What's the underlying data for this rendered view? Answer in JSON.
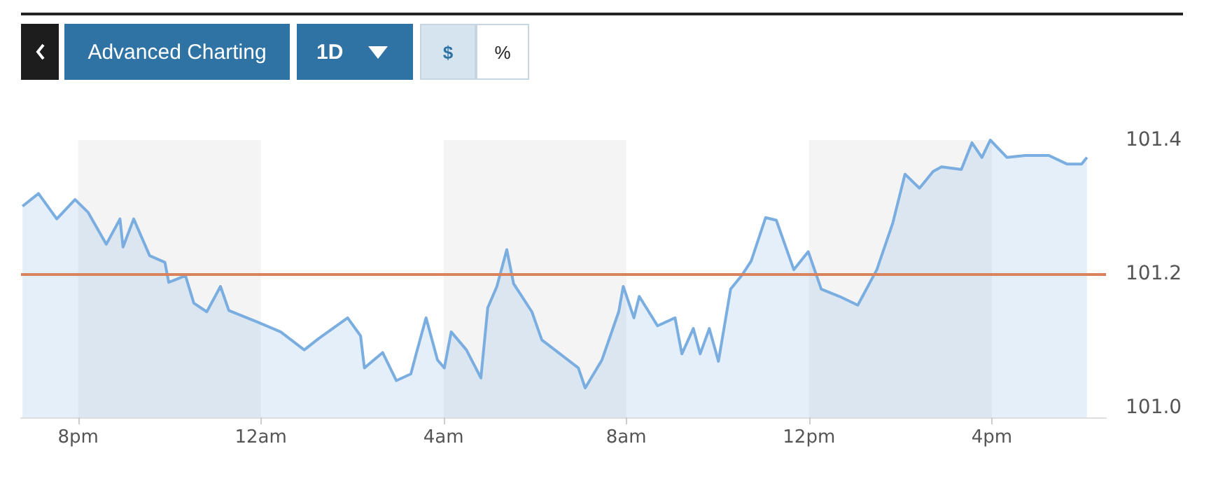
{
  "chart_data": {
    "type": "area",
    "color": "#7aade0",
    "annotations": [
      "Advanced Charting",
      "1D",
      "$",
      "%"
    ],
    "x": [
      "--01-01T18:47",
      "--01-01T19:08",
      "--01-01T19:32",
      "--01-01T19:56",
      "--01-01T20:13",
      "--01-01T20:37",
      "--01-01T20:55",
      "--01-01T20:59",
      "--01-01T21:13",
      "--01-01T21:34",
      "--01-01T21:54",
      "--01-01T21:59",
      "--01-01T22:21",
      "--01-01T22:32",
      "--01-01T22:49",
      "--01-01T23:07",
      "--01-01T23:18",
      "--01-01T23:55",
      "--01-02T00:26",
      "--01-02T00:57",
      "--01-02T01:16",
      "--01-02T01:54",
      "--01-02T02:11",
      "--01-02T02:16",
      "--01-02T02:40",
      "--01-02T02:58",
      "--01-02T03:17",
      "--01-02T03:24",
      "--01-02T03:37",
      "--01-02T03:52",
      "--01-02T04:01",
      "--01-02T04:10",
      "--01-02T04:30",
      "--01-02T04:49",
      "--01-02T04:58",
      "--01-02T05:10",
      "--01-02T05:23",
      "--01-02T05:32",
      "--01-02T05:56",
      "--01-02T06:09",
      "--01-02T06:33",
      "--01-02T06:57",
      "--01-02T07:06",
      "--01-02T07:28",
      "--01-02T07:50",
      "--01-02T07:56",
      "--01-02T08:10",
      "--01-02T08:17",
      "--01-02T08:41",
      "--01-02T09:04",
      "--01-02T09:13",
      "--01-02T09:28",
      "--01-02T09:37",
      "--01-02T09:49",
      "--01-02T10:01",
      "--01-02T10:17",
      "--01-02T10:32",
      "--01-02T10:44",
      "--01-02T11:03",
      "--01-02T11:17",
      "--01-02T11:40",
      "--01-02T11:59",
      "--01-02T12:16",
      "--01-02T12:40",
      "--01-02T13:04",
      "--01-02T13:29",
      "--01-02T13:50",
      "--01-02T14:06",
      "--01-02T14:25",
      "--01-02T14:43",
      "--01-02T14:54",
      "--01-02T15:20",
      "--01-02T15:34",
      "--01-02T15:47",
      "--01-02T15:58",
      "--01-02T16:20",
      "--01-02T16:44",
      "--01-02T17:15",
      "--01-02T17:39",
      "--01-02T17:58",
      "--01-02T18:05"
    ],
    "values": [
      101.301,
      101.32,
      101.282,
      101.311,
      101.292,
      101.244,
      101.282,
      101.24,
      101.282,
      101.227,
      101.217,
      101.187,
      101.197,
      101.156,
      101.143,
      101.181,
      101.145,
      101.128,
      101.113,
      101.086,
      101.103,
      101.134,
      101.107,
      101.059,
      101.082,
      101.04,
      101.05,
      101.08,
      101.134,
      101.071,
      101.059,
      101.113,
      101.086,
      101.044,
      101.149,
      101.181,
      101.236,
      101.185,
      101.143,
      101.101,
      101.08,
      101.059,
      101.029,
      101.071,
      101.143,
      101.181,
      101.134,
      101.166,
      101.122,
      101.134,
      101.08,
      101.118,
      101.08,
      101.118,
      101.069,
      101.177,
      101.198,
      101.219,
      101.284,
      101.28,
      101.206,
      101.233,
      101.177,
      101.166,
      101.153,
      101.206,
      101.276,
      101.349,
      101.328,
      101.353,
      101.36,
      101.356,
      101.396,
      101.374,
      101.4,
      101.374,
      101.377,
      101.377,
      101.364,
      101.364,
      101.374
    ],
    "xlim": [
      "--01-01T18:45",
      "--01-02T18:30"
    ],
    "xticks": [
      {
        "value": "--01-01T20:00",
        "label": "8pm"
      },
      {
        "value": "--01-02T00:00",
        "label": "12am"
      },
      {
        "value": "--01-02T04:00",
        "label": "4am"
      },
      {
        "value": "--01-02T08:00",
        "label": "8am"
      },
      {
        "value": "--01-02T12:00",
        "label": "12pm"
      },
      {
        "value": "--01-02T16:00",
        "label": "4pm"
      }
    ],
    "ylim": [
      100.985,
      101.4
    ],
    "yticks": [
      {
        "value": 101.0,
        "label": "101.0"
      },
      101.2,
      101.4
    ],
    "ref_lines": [
      {
        "axis": "y",
        "value": 101.2,
        "color": "#d9825b"
      }
    ],
    "bands": [
      {
        "axis": "x",
        "from": "--01-01T20:00",
        "to": "--01-02T00:00",
        "color": "#f4f4f4"
      },
      {
        "axis": "x",
        "from": "--01-02T04:00",
        "to": "--01-02T08:00",
        "color": "#f4f4f4"
      },
      {
        "axis": "x",
        "from": "--01-02T12:00",
        "to": "--01-02T16:00",
        "color": "#f4f4f4"
      }
    ],
    "grid": false,
    "marker": "none",
    "line_style": "solid"
  }
}
